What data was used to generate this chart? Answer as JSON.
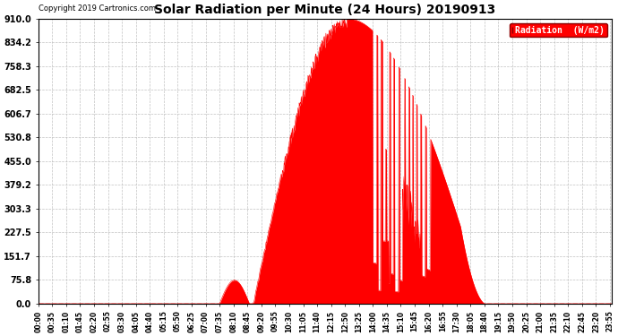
{
  "title": "Solar Radiation per Minute (24 Hours) 20190913",
  "copyright_text": "Copyright 2019 Cartronics.com",
  "legend_label": "Radiation  (W/m2)",
  "background_color": "#ffffff",
  "plot_bg_color": "#ffffff",
  "fill_color": "#ff0000",
  "line_color": "#ff0000",
  "grid_color": "#bbbbbb",
  "yticks": [
    0.0,
    75.8,
    151.7,
    227.5,
    303.3,
    379.2,
    455.0,
    530.8,
    606.7,
    682.5,
    758.3,
    834.2,
    910.0
  ],
  "ymax": 910.0,
  "ymin": 0.0,
  "total_minutes": 1440,
  "x_tick_interval": 35,
  "zero_line_color": "#ff0000"
}
